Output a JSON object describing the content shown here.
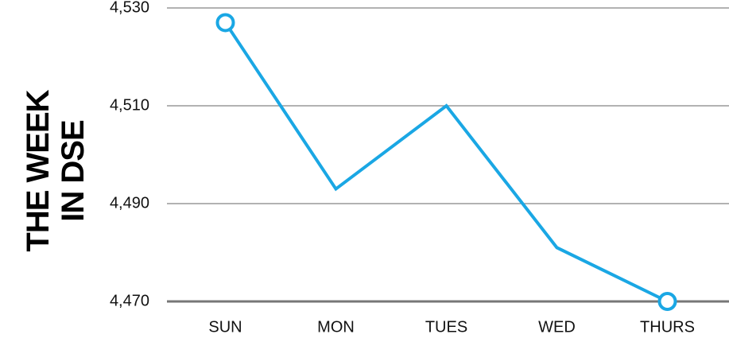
{
  "chart_data": {
    "type": "line",
    "title": "THE WEEK IN DSE",
    "categories": [
      "SUN",
      "MON",
      "TUES",
      "WED",
      "THURS"
    ],
    "series": [
      {
        "name": "DSE",
        "color": "#1aa7e4",
        "values": [
          4527,
          4493,
          4510,
          4481,
          4470
        ]
      }
    ],
    "ylim": [
      4470,
      4530
    ],
    "yticks": [
      {
        "value": 4470,
        "label": "4,470"
      },
      {
        "value": 4490,
        "label": "4,490"
      },
      {
        "value": 4510,
        "label": "4,510"
      },
      {
        "value": 4530,
        "label": "4,530"
      }
    ],
    "grid": true
  }
}
